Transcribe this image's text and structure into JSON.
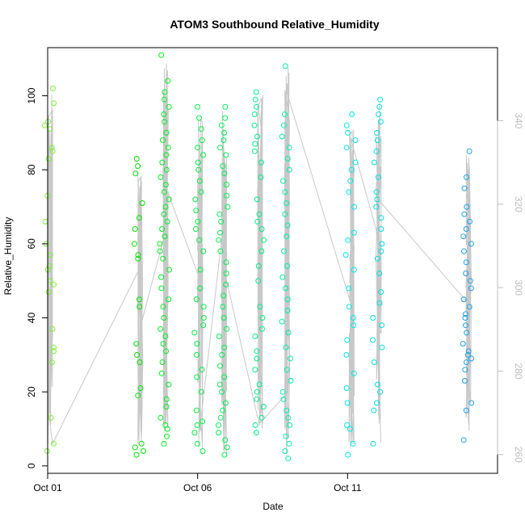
{
  "chart_data": {
    "type": "scatter",
    "title": "ATOM3 Southbound Relative_Humidity",
    "xlabel": "Date",
    "ylabel": "Relative_Humidity",
    "xlim": [
      0,
      15
    ],
    "ylim": [
      -2,
      113
    ],
    "x_ticks": [
      {
        "value": 0,
        "label": "Oct 01"
      },
      {
        "value": 5,
        "label": "Oct 06"
      },
      {
        "value": 10,
        "label": "Oct 11"
      }
    ],
    "y_ticks": [
      0,
      20,
      40,
      60,
      80,
      100
    ],
    "right_axis": {
      "ylim": [
        255.5,
        357.5
      ],
      "ticks": [
        260,
        280,
        300,
        320,
        340
      ],
      "color": "#bdbdbd"
    },
    "line_color": "#c8c8c8",
    "point_colors": [
      "#7cee33",
      "#00e600",
      "#00ee55",
      "#00eeaa",
      "#00e0e0",
      "#00b8e8",
      "#0090e0"
    ],
    "clusters": [
      {
        "x": 0.05,
        "color": "#7cee33",
        "values": [
          4,
          6,
          13,
          28,
          31,
          32,
          37,
          47,
          49,
          50,
          53,
          54,
          57,
          60,
          66,
          73,
          83,
          85,
          86,
          91,
          92,
          93,
          98,
          102
        ]
      },
      {
        "x": 3.05,
        "color": "#00e600",
        "values": [
          3,
          4,
          5,
          6,
          19,
          21,
          28,
          30,
          33,
          43,
          45,
          56,
          57,
          60,
          64,
          67,
          71,
          79,
          81,
          83
        ]
      },
      {
        "x": 3.9,
        "color": "#00ee22",
        "values": [
          6,
          8,
          10,
          11,
          13,
          16,
          18,
          22,
          25,
          28,
          31,
          33,
          35,
          37,
          40,
          43,
          45,
          48,
          51,
          53,
          56,
          58,
          60,
          62,
          64,
          66,
          68,
          70,
          72,
          74,
          76,
          78,
          80,
          82,
          84,
          86,
          88,
          90,
          93,
          95,
          97,
          99,
          101,
          104,
          111
        ]
      },
      {
        "x": 5.05,
        "color": "#00ee44",
        "values": [
          4,
          6,
          9,
          11,
          12,
          15,
          20,
          24,
          26,
          30,
          33,
          36,
          38,
          40,
          43,
          45,
          48,
          53,
          58,
          61,
          64,
          66,
          69,
          72,
          74,
          77,
          80,
          82,
          84,
          86,
          88,
          91,
          94,
          97
        ]
      },
      {
        "x": 5.85,
        "color": "#00ee55",
        "values": [
          3,
          5,
          7,
          9,
          11,
          13,
          15,
          17,
          20,
          22,
          24,
          27,
          30,
          32,
          35,
          37,
          40,
          43,
          46,
          49,
          52,
          55,
          58,
          61,
          63,
          66,
          68,
          70,
          73,
          76,
          79,
          81,
          84,
          86,
          88,
          90,
          92,
          94,
          97
        ]
      },
      {
        "x": 7.05,
        "color": "#00ee88",
        "values": [
          9,
          11,
          13,
          16,
          18,
          20,
          22,
          26,
          29,
          31,
          35,
          37,
          40,
          43,
          50,
          54,
          58,
          61,
          64,
          66,
          68,
          72,
          78,
          82,
          85,
          87,
          89,
          92,
          95,
          97,
          99,
          101
        ]
      },
      {
        "x": 7.95,
        "color": "#00eeaa",
        "values": [
          2,
          4,
          6,
          8,
          11,
          13,
          15,
          18,
          20,
          23,
          26,
          29,
          32,
          36,
          39,
          42,
          45,
          48,
          51,
          54,
          58,
          62,
          65,
          68,
          71,
          74,
          77,
          80,
          83,
          86,
          89,
          92,
          95,
          108
        ]
      },
      {
        "x": 10.1,
        "color": "#00e8e8",
        "values": [
          3,
          6,
          10,
          11,
          17,
          21,
          25,
          30,
          34,
          38,
          40,
          43,
          48,
          53,
          57,
          61,
          63,
          70,
          74,
          77,
          80,
          82,
          86,
          88,
          90,
          92,
          95
        ]
      },
      {
        "x": 11.0,
        "color": "#00e0e0",
        "values": [
          6,
          15,
          17,
          20,
          22,
          28,
          32,
          34,
          38,
          40,
          44,
          47,
          52,
          56,
          58,
          60,
          64,
          67,
          70,
          72,
          74,
          78,
          82,
          85,
          88,
          90,
          93,
          95,
          97,
          99
        ]
      },
      {
        "x": 14.0,
        "color": "#1ea0e8",
        "values": [
          7,
          15,
          17,
          23,
          26,
          28,
          29,
          30,
          31,
          33,
          36,
          38,
          40,
          41,
          43,
          45,
          48,
          50,
          52,
          55,
          58,
          60,
          62,
          64,
          66,
          68,
          70,
          75,
          78,
          85
        ]
      }
    ]
  }
}
